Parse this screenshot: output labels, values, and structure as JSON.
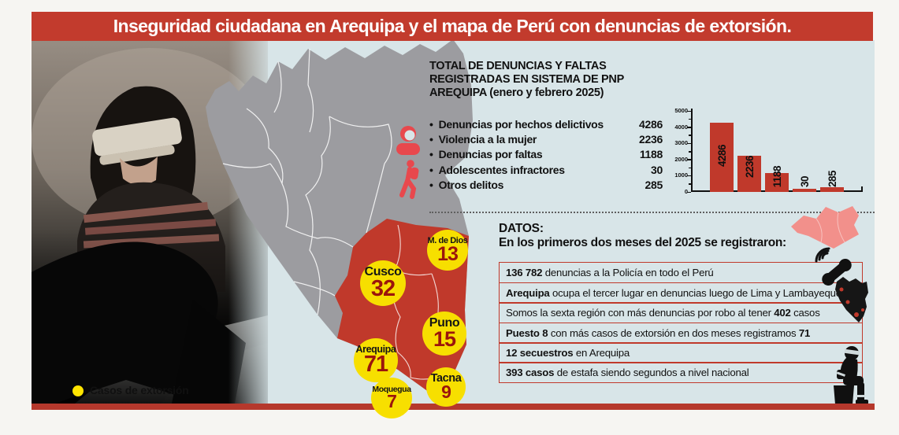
{
  "title": "Inseguridad ciudadana en Arequipa y el mapa de Perú con denuncias de extorsión.",
  "stats": {
    "heading_lines": [
      "TOTAL DE DENUNCIAS Y FALTAS",
      "REGISTRADAS EN SISTEMA DE PNP",
      "AREQUIPA (enero y febrero 2025)"
    ],
    "items": [
      {
        "label": "Denuncias por hechos delictivos",
        "value": "4286"
      },
      {
        "label": "Violencia a la mujer",
        "value": "2236"
      },
      {
        "label": "Denuncias por faltas",
        "value": "1188"
      },
      {
        "label": "Adolescentes infractores",
        "value": "30"
      },
      {
        "label": "Otros delitos",
        "value": "285"
      }
    ]
  },
  "chart_data": {
    "type": "bar",
    "title": "",
    "categories": [
      "Denuncias por hechos delictivos",
      "Violencia a la mujer",
      "Denuncias por faltas",
      "Adolescentes infractores",
      "Otros delitos"
    ],
    "values": [
      4286,
      2236,
      1188,
      30,
      285
    ],
    "xlabel": "",
    "ylabel": "",
    "ylim": [
      0,
      5000
    ],
    "yticks": [
      0,
      1000,
      2000,
      3000,
      4000,
      5000
    ],
    "grid": false,
    "legend": false,
    "bar_color": "#c0392b"
  },
  "map": {
    "legend_label": "Casos de extorsión",
    "markers": [
      {
        "region": "Cusco",
        "cases": "32"
      },
      {
        "region": "M. de Dios",
        "cases": "13"
      },
      {
        "region": "Puno",
        "cases": "15"
      },
      {
        "region": "Arequipa",
        "cases": "71"
      },
      {
        "region": "Moquegua",
        "cases": "7"
      },
      {
        "region": "Tacna",
        "cases": "9"
      }
    ]
  },
  "datos": {
    "heading": "DATOS:",
    "subheading": "En los primeros dos meses del 2025 se registraron:",
    "rows": [
      {
        "b1": "136 782",
        "t1": " denuncias a la Policía en todo el Perú"
      },
      {
        "b1": "Arequipa",
        "t1": " ocupa el tercer lugar en denuncias luego de Lima y Lambayeque"
      },
      {
        "t0": "Somos la sexta región con más denuncias por robo al tener ",
        "b1": "402",
        "t1": " casos"
      },
      {
        "b1": "Puesto 8",
        "t1": " con más casos de extorsión en dos meses registramos ",
        "b2": "71"
      },
      {
        "b1": "12 secuestros",
        "t1": " en Arequipa"
      },
      {
        "b1": "393 casos",
        "t1": " de estafa siendo segundos a nivel nacional"
      }
    ]
  },
  "icons": {
    "woman": "woman-icon",
    "teen": "teen-walking-icon",
    "robbery": "armed-robbery-pictogram",
    "phone": "ringing-phone-icon",
    "peru_mini": "peru-map-icon",
    "hostage": "kidnapped-person-icon",
    "south_region": "south-region-shape",
    "legend_dot": "extortion-case-dot"
  },
  "colors": {
    "banner_red": "#c23b2d",
    "bar_red": "#c0392b",
    "panel_blue": "#d8e5e8",
    "map_gray": "#9c9ca0",
    "map_red": "#c0392b",
    "circle_yellow": "#f7df00",
    "number_red": "#9b150c",
    "icon_red": "#e8484d",
    "pink_region": "#f2908b"
  }
}
